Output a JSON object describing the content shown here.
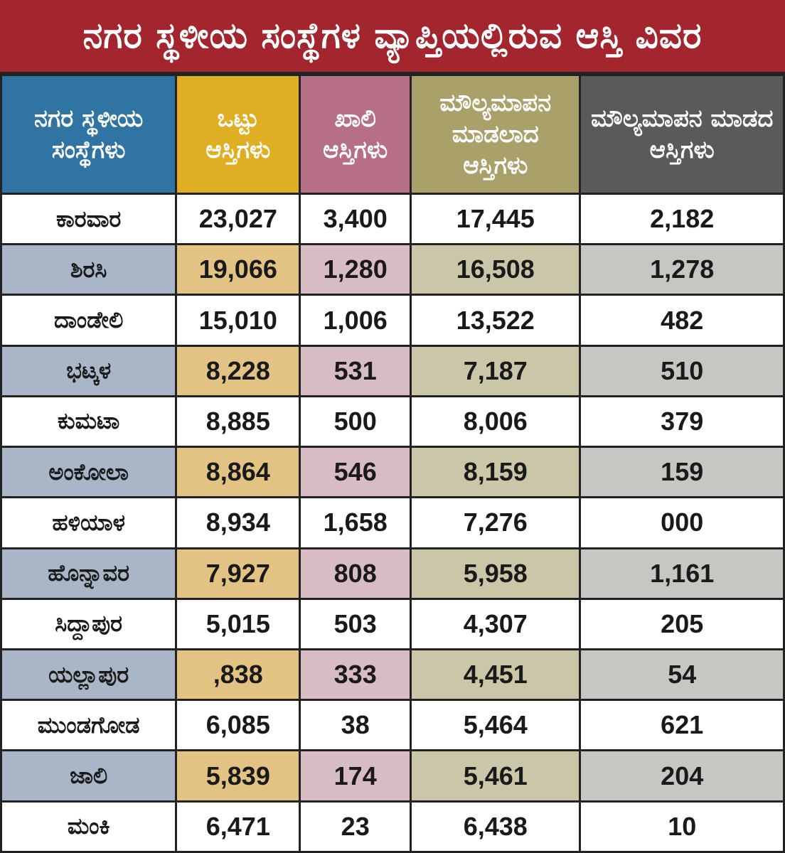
{
  "title": "ನಗರ ಸ್ಥಳೀಯ ಸಂಸ್ಥೆಗಳ ವ್ಯಾಪ್ತಿಯಲ್ಲಿರುವ ಆಸ್ತಿ ವಿವರ",
  "colors": {
    "title_background": "#a3262f",
    "header_col1": "#2f74a2",
    "header_col2": "#e0ae22",
    "header_col3": "#b76f86",
    "header_col4": "#a9a06a",
    "header_col5": "#5a5a59"
  },
  "headers": [
    "ನಗರ ಸ್ಥಳೀಯ ಸಂಸ್ಥೆಗಳು",
    "ಒಟ್ಟು ಆಸ್ತಿಗಳು",
    "ಖಾಲಿ ಆಸ್ತಿಗಳು",
    "ಮೌಲ್ಯಮಾಪನ ಮಾಡಲಾದ ಆಸ್ತಿಗಳು",
    "ಮೌಲ್ಯಮಾಪನ ಮಾಡದ ಆಸ್ತಿಗಳು"
  ],
  "rows": [
    [
      "ಕಾರವಾರ",
      "23,027",
      "3,400",
      "17,445",
      "2,182"
    ],
    [
      "ಶಿರಸಿ",
      "19,066",
      "1,280",
      "16,508",
      "1,278"
    ],
    [
      "ದಾಂಡೇಲಿ",
      "15,010",
      "1,006",
      "13,522",
      "482"
    ],
    [
      "ಭಟ್ಕಳ",
      "8,228",
      "531",
      "7,187",
      "510"
    ],
    [
      "ಕುಮಟಾ",
      "8,885",
      "500",
      "8,006",
      "379"
    ],
    [
      "ಅಂಕೋಲಾ",
      "8,864",
      "546",
      "8,159",
      "159"
    ],
    [
      "ಹಳಿಯಾಳ",
      "8,934",
      "1,658",
      "7,276",
      "000"
    ],
    [
      "ಹೊನ್ನಾವರ",
      "7,927",
      "808",
      "5,958",
      "1,161"
    ],
    [
      "ಸಿದ್ದಾಪುರ",
      "5,015",
      "503",
      "4,307",
      "205"
    ],
    [
      "ಯಲ್ಲಾಪುರ",
      ",838",
      "333",
      "4,451",
      "54"
    ],
    [
      "ಮುಂಡಗೋಡ",
      "6,085",
      "38",
      "5,464",
      "621"
    ],
    [
      "ಜಾಲಿ",
      "5,839",
      "174",
      "5,461",
      "204"
    ],
    [
      "ಮಂಕಿ",
      "6,471",
      "23",
      "6,438",
      "10"
    ]
  ]
}
